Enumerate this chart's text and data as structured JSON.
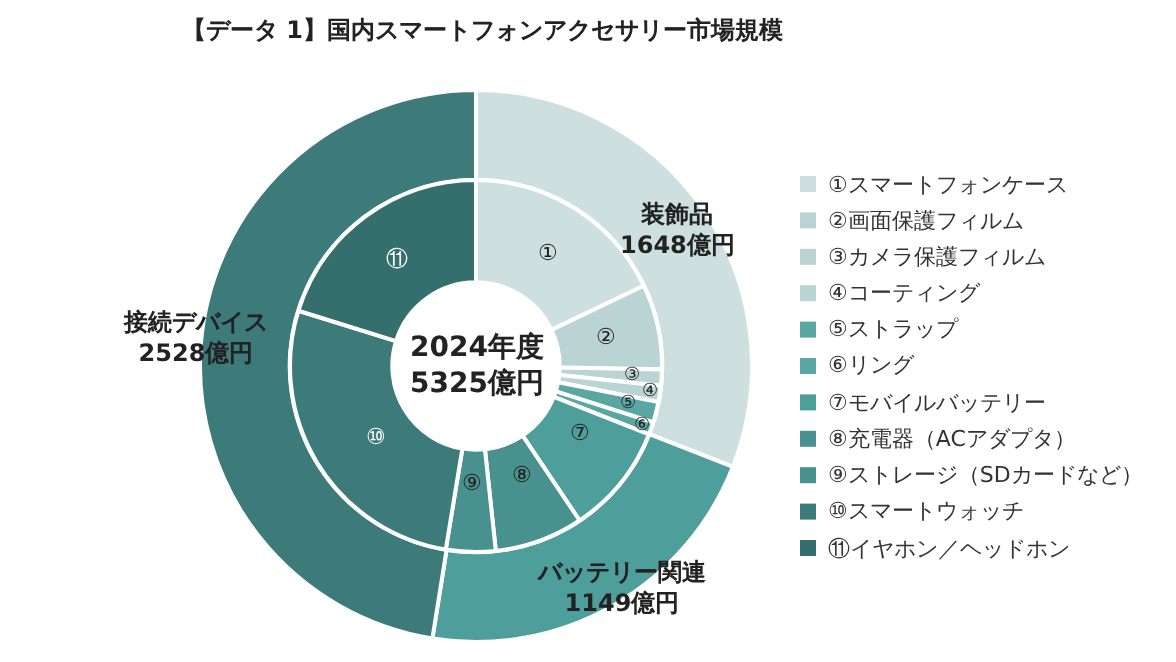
{
  "chart_data": [
    {
      "type": "donut",
      "title": "【データ 1】国内スマートフォンアクセサリー市場規模",
      "categories": [
        "装飾品",
        "バッテリー関連",
        "接続デバイス"
      ],
      "values": [
        1648,
        1149,
        2528
      ],
      "colors": [
        "#cde0df",
        "#4e9e9b",
        "#3d7b7b"
      ],
      "value_labels": [
        "1648億円",
        "1149億円",
        "2528億円"
      ],
      "annotations": [
        "2024年度\n5325億円"
      ]
    },
    {
      "type": "donut",
      "categories": [
        "①スマートフォンケース",
        "②画面保護フィルム",
        "③カメラ保護フィルム",
        "④コーティング",
        "⑤ストラップ",
        "⑥リング",
        "⑦モバイルバッテリー",
        "⑧充電器（ACアダプタ）",
        "⑨ストレージ（SDカードなど）",
        "⑩スマートウォッチ",
        "⑪イヤホン／ヘッドホン"
      ],
      "values": [
        17.9,
        7.4,
        1.4,
        1.4,
        1.8,
        1.1,
        9.6,
        7.7,
        4.3,
        27.2,
        20.2
      ],
      "colors": [
        "#cde0df",
        "#b9d4d3",
        "#b9d4d3",
        "#b9d4d3",
        "#5aa6a3",
        "#5aa6a3",
        "#4e9e9b",
        "#48918e",
        "#48918e",
        "#3d7b7b",
        "#346f6e"
      ],
      "legend": "right",
      "value_labels": [
        "①",
        "②",
        "③",
        "④",
        "⑤",
        "⑥",
        "⑦",
        "⑧",
        "⑨",
        "⑩",
        "⑪"
      ]
    }
  ]
}
